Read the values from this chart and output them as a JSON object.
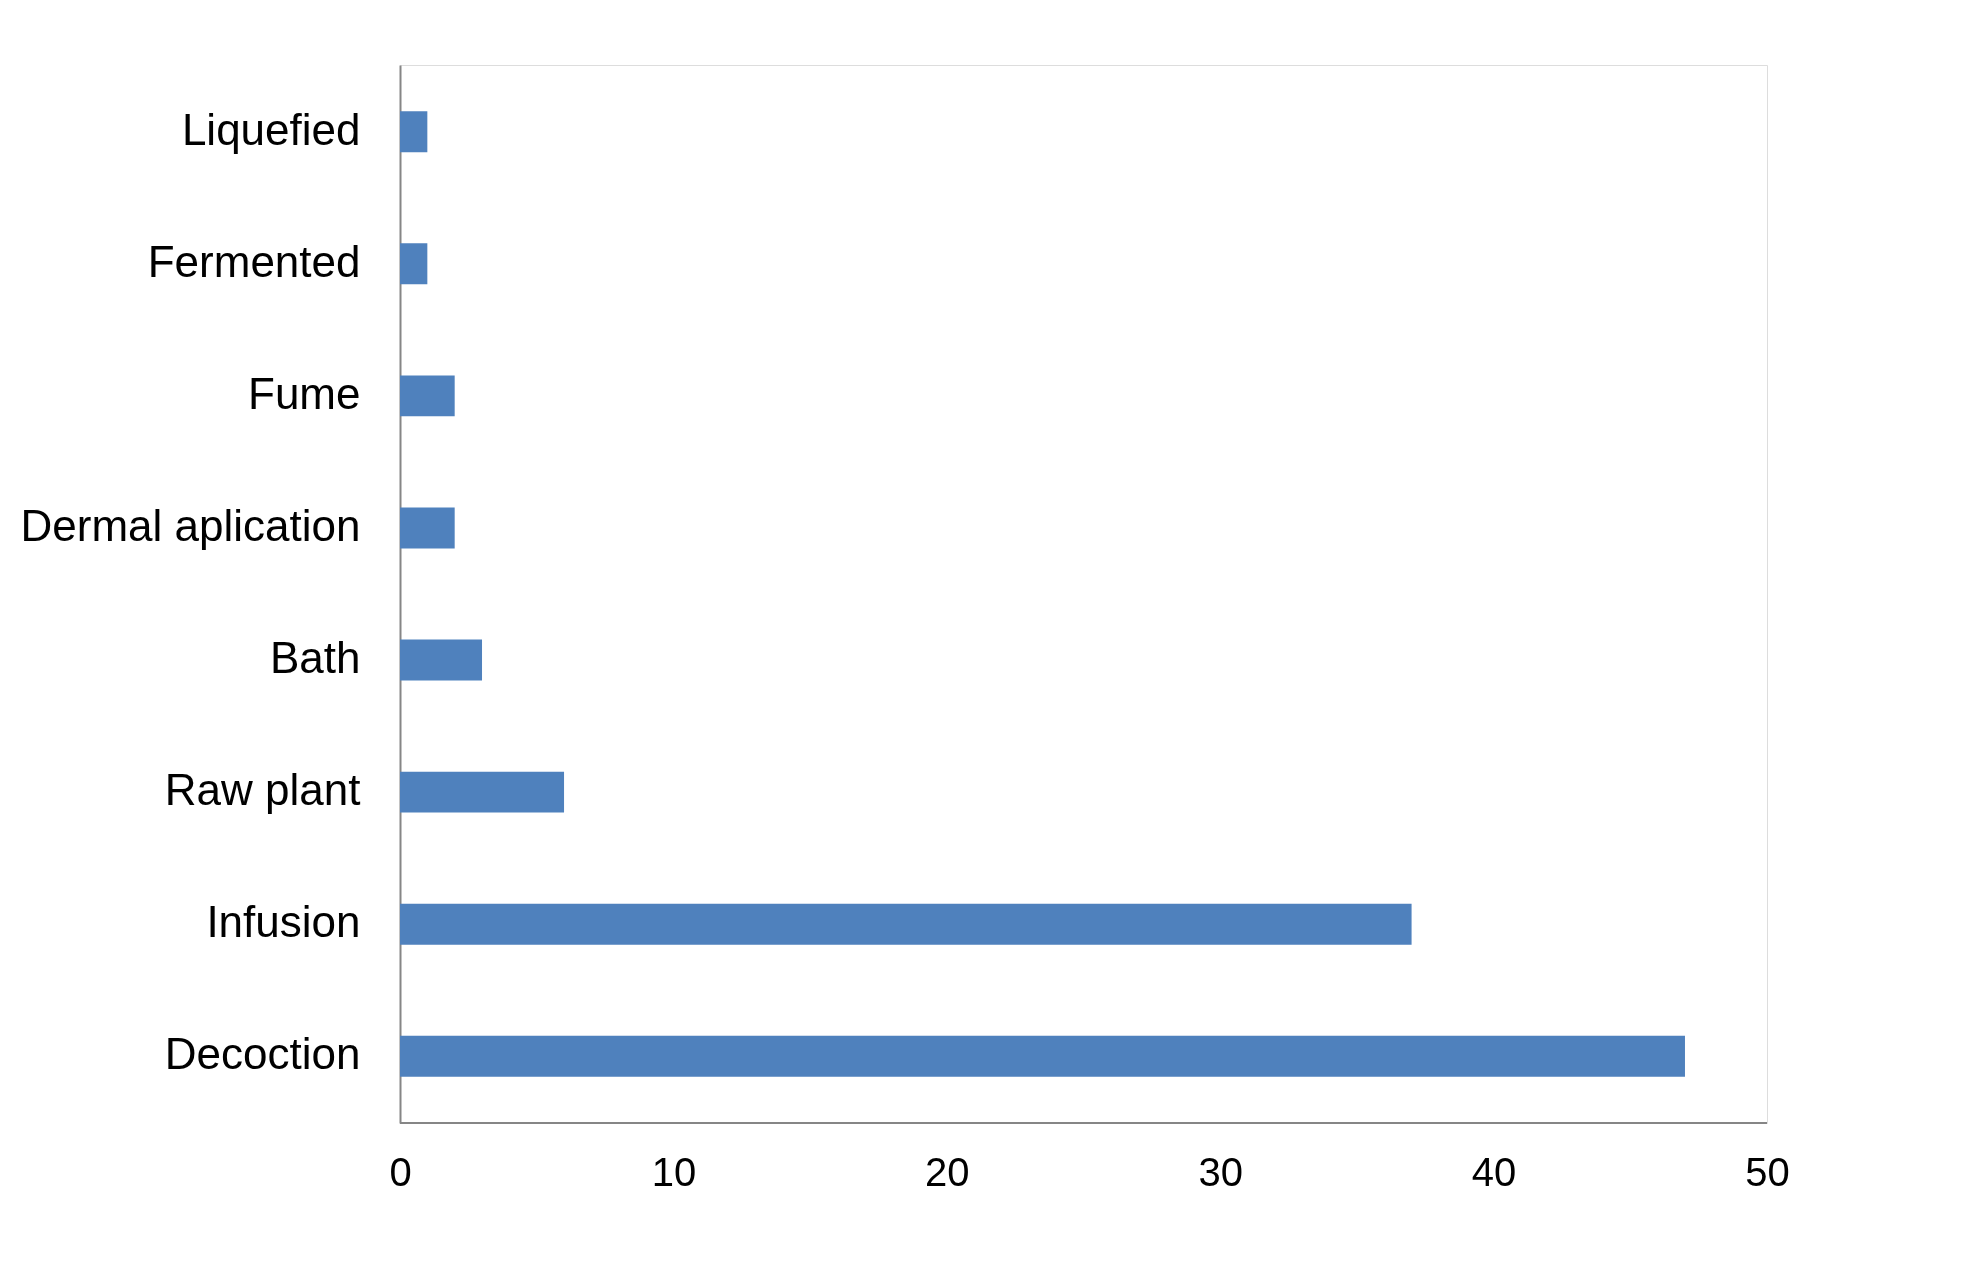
{
  "chart_data": {
    "type": "bar",
    "orientation": "horizontal",
    "categories": [
      "Liquefied",
      "Fermented",
      "Fume",
      "Dermal aplication",
      "Bath",
      "Raw plant",
      "Infusion",
      "Decoction"
    ],
    "values": [
      1,
      1,
      2,
      2,
      3,
      6,
      37,
      47
    ],
    "color": "#4f81bd",
    "xlim": [
      0,
      50
    ],
    "xticks": [
      0,
      10,
      20,
      30,
      40,
      50
    ],
    "grid": false
  }
}
